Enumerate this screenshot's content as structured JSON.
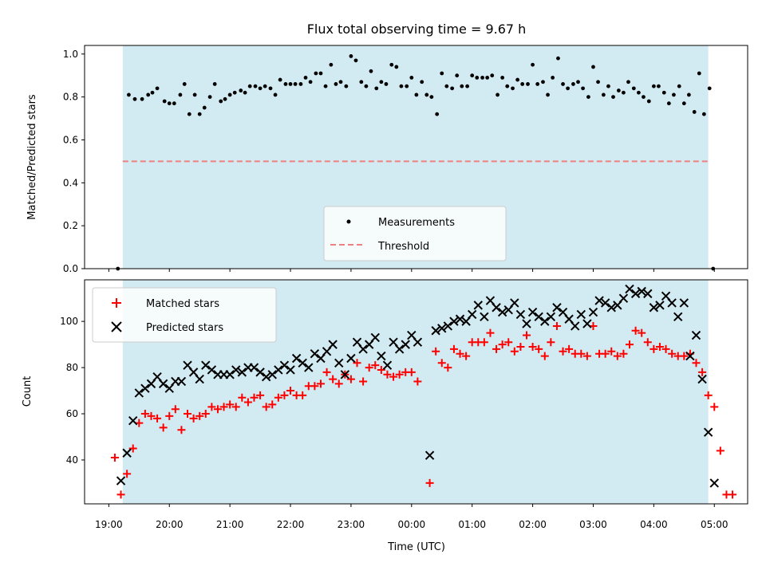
{
  "chart_data": [
    {
      "type": "scatter",
      "title": "Flux total observing time = 9.67 h",
      "xlabel": "",
      "ylabel": "Matched/Predicted stars",
      "ylim": [
        0,
        1.04
      ],
      "yticks": [
        "0.0",
        "0.2",
        "0.4",
        "0.6",
        "0.8",
        "1.0"
      ],
      "ytick_values": [
        0.0,
        0.2,
        0.4,
        0.6,
        0.8,
        1.0
      ],
      "x_range_hours": [
        18.6,
        29.55
      ],
      "shaded_span_hours": [
        19.23,
        28.9
      ],
      "shade_color": "#add8e6",
      "legend": {
        "location": "lower-center",
        "entries": [
          "Measurements",
          "Threshold"
        ]
      },
      "threshold": {
        "name": "Threshold",
        "value": 0.5,
        "color": "#f08080",
        "style": "dashed"
      },
      "series": [
        {
          "name": "Measurements",
          "color": "#000000",
          "marker": "dot",
          "x_hours": [
            19.15,
            19.33,
            19.43,
            19.55,
            19.65,
            19.72,
            19.8,
            19.92,
            20.0,
            20.08,
            20.18,
            20.25,
            20.33,
            20.42,
            20.5,
            20.58,
            20.67,
            20.75,
            20.85,
            20.92,
            21.0,
            21.08,
            21.18,
            21.25,
            21.33,
            21.42,
            21.5,
            21.58,
            21.67,
            21.75,
            21.83,
            21.92,
            22.0,
            22.08,
            22.17,
            22.25,
            22.33,
            22.42,
            22.5,
            22.58,
            22.67,
            22.75,
            22.83,
            22.92,
            23.0,
            23.08,
            23.17,
            23.25,
            23.33,
            23.42,
            23.5,
            23.58,
            23.67,
            23.75,
            23.83,
            23.92,
            24.0,
            24.08,
            24.17,
            24.25,
            24.33,
            24.42,
            24.5,
            24.58,
            24.67,
            24.75,
            24.83,
            24.92,
            25.0,
            25.08,
            25.17,
            25.25,
            25.33,
            25.42,
            25.5,
            25.58,
            25.67,
            25.75,
            25.83,
            25.92,
            26.0,
            26.08,
            26.17,
            26.25,
            26.33,
            26.42,
            26.5,
            26.58,
            26.67,
            26.75,
            26.83,
            26.92,
            27.0,
            27.08,
            27.17,
            27.25,
            27.33,
            27.42,
            27.5,
            27.58,
            27.67,
            27.75,
            27.83,
            27.92,
            28.0,
            28.08,
            28.17,
            28.25,
            28.33,
            28.42,
            28.5,
            28.58,
            28.67,
            28.75,
            28.83,
            28.92,
            28.98
          ],
          "y": [
            0.0,
            0.81,
            0.79,
            0.79,
            0.81,
            0.82,
            0.84,
            0.78,
            0.77,
            0.77,
            0.81,
            0.86,
            0.72,
            0.81,
            0.72,
            0.75,
            0.8,
            0.86,
            0.78,
            0.79,
            0.81,
            0.82,
            0.83,
            0.82,
            0.85,
            0.85,
            0.84,
            0.85,
            0.84,
            0.81,
            0.88,
            0.86,
            0.86,
            0.86,
            0.86,
            0.89,
            0.87,
            0.91,
            0.91,
            0.85,
            0.95,
            0.86,
            0.87,
            0.85,
            0.99,
            0.97,
            0.87,
            0.85,
            0.92,
            0.84,
            0.87,
            0.86,
            0.95,
            0.94,
            0.85,
            0.85,
            0.89,
            0.81,
            0.87,
            0.81,
            0.8,
            0.72,
            0.91,
            0.85,
            0.84,
            0.9,
            0.85,
            0.85,
            0.9,
            0.89,
            0.89,
            0.89,
            0.9,
            0.81,
            0.89,
            0.85,
            0.84,
            0.88,
            0.86,
            0.86,
            0.95,
            0.86,
            0.87,
            0.81,
            0.89,
            0.98,
            0.86,
            0.84,
            0.86,
            0.87,
            0.84,
            0.8,
            0.94,
            0.87,
            0.81,
            0.85,
            0.8,
            0.83,
            0.82,
            0.87,
            0.84,
            0.82,
            0.8,
            0.78,
            0.85,
            0.85,
            0.82,
            0.77,
            0.81,
            0.85,
            0.77,
            0.81,
            0.73,
            0.91,
            0.72,
            0.84,
            0.0
          ]
        }
      ]
    },
    {
      "type": "scatter",
      "title": "",
      "xlabel": "Time (UTC)",
      "ylabel": "Count",
      "ylim": [
        21,
        118
      ],
      "yticks": [
        "40",
        "60",
        "80",
        "100"
      ],
      "ytick_values": [
        40,
        60,
        80,
        100
      ],
      "x_range_hours": [
        18.6,
        29.55
      ],
      "xticks": [
        "19:00",
        "20:00",
        "21:00",
        "22:00",
        "23:00",
        "00:00",
        "01:00",
        "02:00",
        "03:00",
        "04:00",
        "05:00"
      ],
      "xtick_values": [
        19,
        20,
        21,
        22,
        23,
        24,
        25,
        26,
        27,
        28,
        29
      ],
      "shaded_span_hours": [
        19.23,
        28.9
      ],
      "legend": {
        "location": "upper-left",
        "entries": [
          "Matched stars",
          "Predicted stars"
        ]
      },
      "series": [
        {
          "name": "Matched stars",
          "color": "#ff0000",
          "marker": "plus",
          "x_hours": [
            19.1,
            19.2,
            19.3,
            19.4,
            19.5,
            19.6,
            19.7,
            19.8,
            19.9,
            20.0,
            20.1,
            20.2,
            20.3,
            20.4,
            20.5,
            20.6,
            20.7,
            20.8,
            20.9,
            21.0,
            21.1,
            21.2,
            21.3,
            21.4,
            21.5,
            21.6,
            21.7,
            21.8,
            21.9,
            22.0,
            22.1,
            22.2,
            22.3,
            22.4,
            22.5,
            22.6,
            22.7,
            22.8,
            22.9,
            23.0,
            23.1,
            23.2,
            23.3,
            23.4,
            23.5,
            23.6,
            23.7,
            23.8,
            23.9,
            24.0,
            24.1,
            24.3,
            24.4,
            24.5,
            24.6,
            24.7,
            24.8,
            24.9,
            25.0,
            25.1,
            25.2,
            25.3,
            25.4,
            25.5,
            25.6,
            25.7,
            25.8,
            25.9,
            26.0,
            26.1,
            26.2,
            26.3,
            26.4,
            26.5,
            26.6,
            26.7,
            26.8,
            26.9,
            27.0,
            27.1,
            27.2,
            27.3,
            27.4,
            27.5,
            27.6,
            27.7,
            27.8,
            27.9,
            28.0,
            28.1,
            28.2,
            28.3,
            28.4,
            28.5,
            28.6,
            28.7,
            28.8,
            28.9,
            29.0
          ],
          "y": [
            41,
            25,
            34,
            45,
            56,
            60,
            59,
            58,
            54,
            59,
            62,
            53,
            60,
            58,
            59,
            60,
            63,
            62,
            63,
            64,
            63,
            67,
            65,
            67,
            68,
            63,
            64,
            67,
            68,
            70,
            68,
            68,
            72,
            72,
            73,
            78,
            75,
            73,
            77,
            75,
            82,
            74,
            80,
            81,
            79,
            77,
            76,
            77,
            78,
            78,
            74,
            30,
            87,
            82,
            80,
            88,
            86,
            85,
            91,
            91,
            91,
            95,
            88,
            90,
            91,
            87,
            89,
            94,
            89,
            88,
            85,
            91,
            98,
            87,
            88,
            86,
            86,
            85,
            98,
            86,
            86,
            87,
            85,
            86,
            90,
            96,
            95,
            91,
            88,
            89,
            88,
            86,
            85,
            85,
            86,
            82,
            78,
            68,
            63
          ],
          "extra_points": [
            [
              29.1,
              44
            ],
            [
              29.2,
              25
            ],
            [
              29.3,
              25
            ]
          ]
        },
        {
          "name": "Predicted stars",
          "color": "#000000",
          "marker": "x",
          "x_hours": [
            19.2,
            19.3,
            19.4,
            19.5,
            19.6,
            19.7,
            19.8,
            19.9,
            20.0,
            20.1,
            20.2,
            20.3,
            20.4,
            20.5,
            20.6,
            20.7,
            20.8,
            20.9,
            21.0,
            21.1,
            21.2,
            21.3,
            21.4,
            21.5,
            21.6,
            21.7,
            21.8,
            21.9,
            22.0,
            22.1,
            22.2,
            22.3,
            22.4,
            22.5,
            22.6,
            22.7,
            22.8,
            22.9,
            23.0,
            23.1,
            23.2,
            23.3,
            23.4,
            23.5,
            23.6,
            23.7,
            23.8,
            23.9,
            24.0,
            24.1,
            24.3,
            24.4,
            24.5,
            24.6,
            24.7,
            24.8,
            24.9,
            25.0,
            25.1,
            25.2,
            25.3,
            25.4,
            25.5,
            25.6,
            25.7,
            25.8,
            25.9,
            26.0,
            26.1,
            26.2,
            26.3,
            26.4,
            26.5,
            26.6,
            26.7,
            26.8,
            26.9,
            27.0,
            27.1,
            27.2,
            27.3,
            27.4,
            27.5,
            27.6,
            27.7,
            27.8,
            27.9,
            28.0,
            28.1,
            28.2,
            28.3,
            28.4,
            28.5,
            28.6,
            28.7,
            28.8,
            28.9,
            29.0
          ],
          "y": [
            31,
            43,
            57,
            69,
            71,
            73,
            76,
            73,
            71,
            74,
            74,
            81,
            78,
            75,
            81,
            79,
            77,
            77,
            77,
            79,
            78,
            80,
            80,
            78,
            76,
            77,
            79,
            81,
            79,
            84,
            82,
            80,
            86,
            84,
            87,
            90,
            82,
            77,
            84,
            91,
            88,
            90,
            93,
            85,
            81,
            91,
            88,
            90,
            94,
            91,
            42,
            96,
            97,
            98,
            100,
            101,
            100,
            103,
            107,
            102,
            109,
            106,
            104,
            105,
            108,
            103,
            99,
            104,
            102,
            100,
            102,
            106,
            104,
            101,
            98,
            103,
            99,
            104,
            109,
            108,
            106,
            107,
            110,
            114,
            112,
            113,
            112,
            106,
            107,
            111,
            108,
            102,
            108,
            85,
            94,
            75,
            52,
            30
          ]
        }
      ]
    }
  ]
}
